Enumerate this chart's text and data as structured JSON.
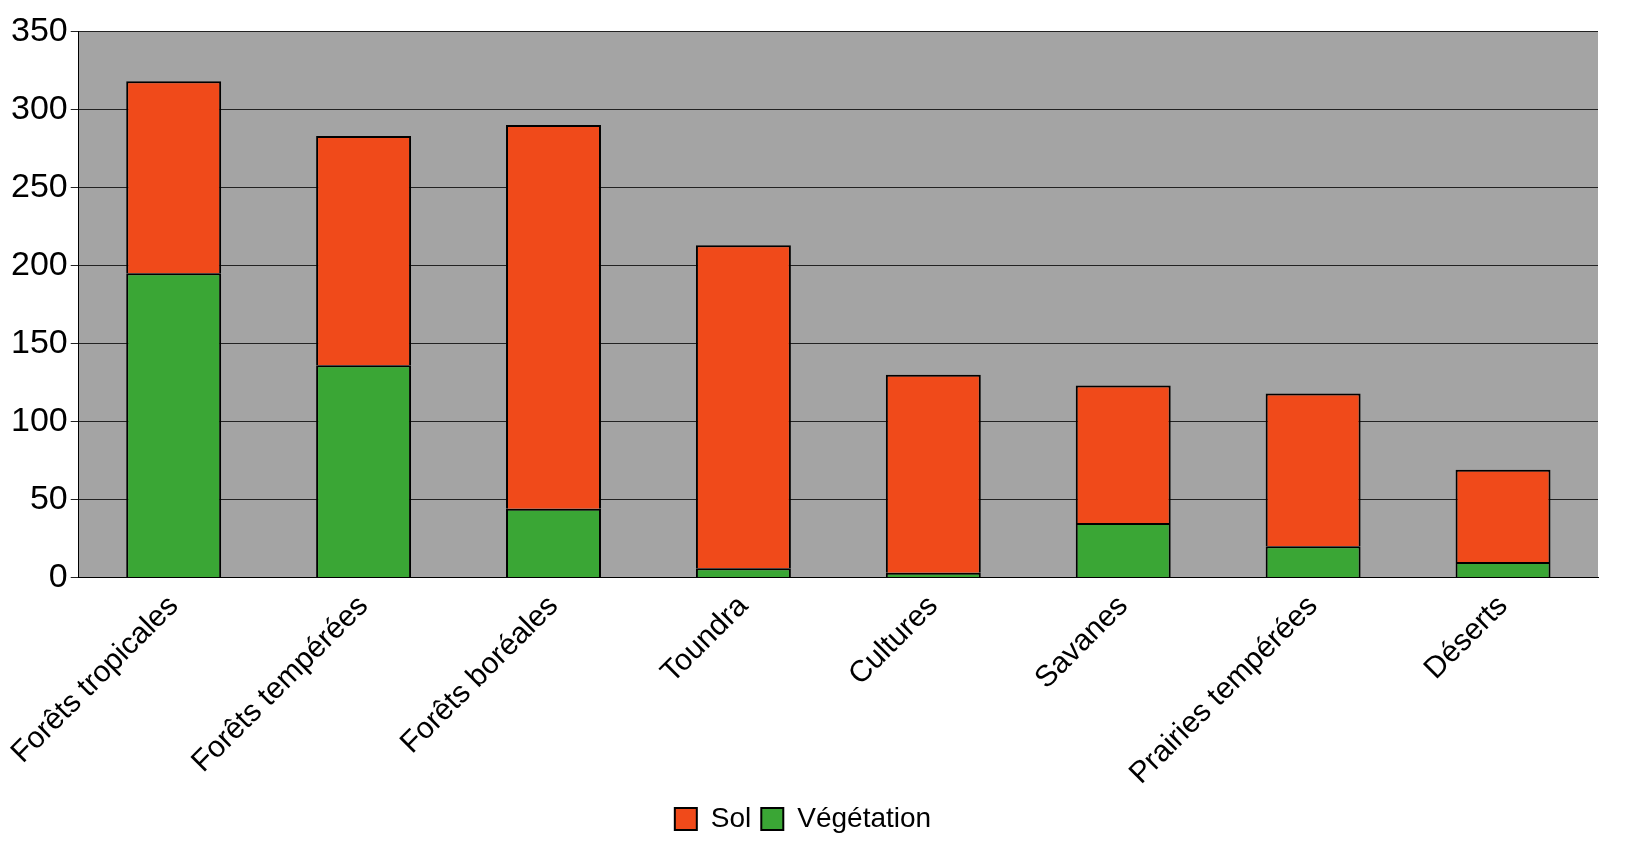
{
  "chart_data": {
    "type": "bar",
    "stacked": true,
    "categories": [
      "Forêts tropicales",
      "Forêts tempérées",
      "Forêts boréales",
      "Toundra",
      "Cultures",
      "Savanes",
      "Prairies tempérées",
      "Déserts"
    ],
    "series": [
      {
        "name": "Végétation",
        "color": "#3aa635",
        "values": [
          195,
          136,
          44,
          6,
          3,
          35,
          20,
          10
        ]
      },
      {
        "name": "Sol",
        "color": "#f04a1a",
        "values": [
          123,
          147,
          246,
          207,
          127,
          88,
          98,
          59
        ]
      }
    ],
    "ylim": [
      0,
      350
    ],
    "yticks": [
      0,
      50,
      100,
      150,
      200,
      250,
      300,
      350
    ],
    "grid": "y",
    "legend": "bottom"
  }
}
